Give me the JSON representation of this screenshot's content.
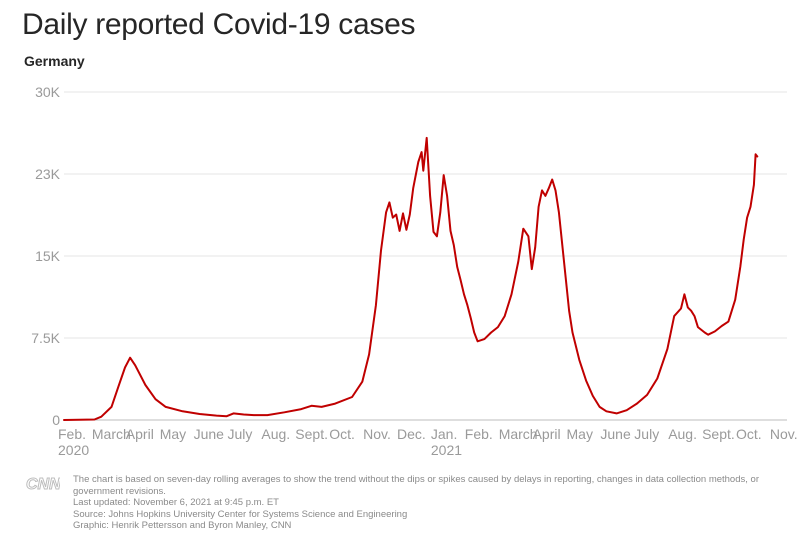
{
  "header": {
    "title": "Daily reported Covid-19 cases",
    "subtitle": "Germany"
  },
  "footer": {
    "logo": "CNN",
    "note": "The chart is based on seven-day rolling averages to show the trend without the dips or spikes caused by delays in reporting, changes in data collection methods, or government revisions.",
    "updated": "Last updated: November 6, 2021 at 9:45 p.m. ET",
    "source": "Source: Johns Hopkins University Center for Systems Science and Engineering",
    "graphic": "Graphic: Henrik Pettersson and Byron Manley, CNN"
  },
  "colors": {
    "line": "#c00000",
    "grid": "#e6e6e6",
    "axis": "#bdbdbd",
    "tick_text": "#9a9a9a"
  },
  "chart_data": {
    "type": "line",
    "title": "Daily reported Covid-19 cases",
    "subtitle": "Germany",
    "xlabel": "",
    "ylabel": "",
    "ylim": [
      0,
      30000
    ],
    "y_ticks": [
      {
        "value": 0,
        "label": "0"
      },
      {
        "value": 7500,
        "label": "7.5K"
      },
      {
        "value": 15000,
        "label": "15K"
      },
      {
        "value": 22500,
        "label": "23K"
      },
      {
        "value": 30000,
        "label": "30K"
      }
    ],
    "x_ticks": [
      {
        "month": 0,
        "label": "Feb."
      },
      {
        "month": 1,
        "label": "March"
      },
      {
        "month": 2,
        "label": "April"
      },
      {
        "month": 3,
        "label": "May"
      },
      {
        "month": 4,
        "label": "June"
      },
      {
        "month": 5,
        "label": "July"
      },
      {
        "month": 6,
        "label": "Aug."
      },
      {
        "month": 7,
        "label": "Sept."
      },
      {
        "month": 8,
        "label": "Oct."
      },
      {
        "month": 9,
        "label": "Nov."
      },
      {
        "month": 10,
        "label": "Dec."
      },
      {
        "month": 11,
        "label": "Jan."
      },
      {
        "month": 12,
        "label": "Feb."
      },
      {
        "month": 13,
        "label": "March"
      },
      {
        "month": 14,
        "label": "April"
      },
      {
        "month": 15,
        "label": "May"
      },
      {
        "month": 16,
        "label": "June"
      },
      {
        "month": 17,
        "label": "July"
      },
      {
        "month": 18,
        "label": "Aug."
      },
      {
        "month": 19,
        "label": "Sept."
      },
      {
        "month": 20,
        "label": "Oct."
      },
      {
        "month": 21,
        "label": "Nov."
      }
    ],
    "year_labels": [
      {
        "month": 0,
        "label": "2020"
      },
      {
        "month": 11,
        "label": "2021"
      }
    ],
    "grid": true,
    "series": [
      {
        "points": [
          [
            0.0,
            0
          ],
          [
            0.9,
            50
          ],
          [
            1.1,
            300
          ],
          [
            1.4,
            1200
          ],
          [
            1.6,
            3000
          ],
          [
            1.8,
            4800
          ],
          [
            1.95,
            5700
          ],
          [
            2.1,
            5000
          ],
          [
            2.4,
            3200
          ],
          [
            2.7,
            1900
          ],
          [
            3.0,
            1200
          ],
          [
            3.5,
            800
          ],
          [
            4.0,
            550
          ],
          [
            4.5,
            400
          ],
          [
            4.8,
            350
          ],
          [
            5.0,
            600
          ],
          [
            5.3,
            500
          ],
          [
            5.6,
            450
          ],
          [
            6.0,
            450
          ],
          [
            6.5,
            700
          ],
          [
            7.0,
            1000
          ],
          [
            7.3,
            1300
          ],
          [
            7.6,
            1200
          ],
          [
            8.0,
            1500
          ],
          [
            8.5,
            2100
          ],
          [
            8.8,
            3500
          ],
          [
            9.0,
            6000
          ],
          [
            9.2,
            10500
          ],
          [
            9.35,
            15500
          ],
          [
            9.5,
            19000
          ],
          [
            9.6,
            19900
          ],
          [
            9.7,
            18500
          ],
          [
            9.8,
            18800
          ],
          [
            9.9,
            17300
          ],
          [
            10.0,
            18900
          ],
          [
            10.1,
            17400
          ],
          [
            10.2,
            18800
          ],
          [
            10.3,
            21200
          ],
          [
            10.45,
            23600
          ],
          [
            10.55,
            24500
          ],
          [
            10.6,
            22800
          ],
          [
            10.7,
            25800
          ],
          [
            10.8,
            20500
          ],
          [
            10.9,
            17200
          ],
          [
            11.0,
            16800
          ],
          [
            11.1,
            19000
          ],
          [
            11.2,
            22400
          ],
          [
            11.3,
            20500
          ],
          [
            11.4,
            17300
          ],
          [
            11.5,
            16000
          ],
          [
            11.6,
            14000
          ],
          [
            11.7,
            12800
          ],
          [
            11.8,
            11500
          ],
          [
            11.9,
            10500
          ],
          [
            12.0,
            9300
          ],
          [
            12.1,
            8000
          ],
          [
            12.2,
            7200
          ],
          [
            12.4,
            7400
          ],
          [
            12.6,
            8000
          ],
          [
            12.8,
            8500
          ],
          [
            13.0,
            9500
          ],
          [
            13.2,
            11500
          ],
          [
            13.4,
            14500
          ],
          [
            13.55,
            17500
          ],
          [
            13.7,
            16800
          ],
          [
            13.8,
            13800
          ],
          [
            13.9,
            15800
          ],
          [
            14.0,
            19500
          ],
          [
            14.1,
            21000
          ],
          [
            14.2,
            20500
          ],
          [
            14.3,
            21200
          ],
          [
            14.4,
            22000
          ],
          [
            14.5,
            21000
          ],
          [
            14.6,
            19000
          ],
          [
            14.7,
            16000
          ],
          [
            14.8,
            13000
          ],
          [
            14.9,
            10000
          ],
          [
            15.0,
            8000
          ],
          [
            15.2,
            5500
          ],
          [
            15.4,
            3600
          ],
          [
            15.6,
            2200
          ],
          [
            15.8,
            1200
          ],
          [
            16.0,
            800
          ],
          [
            16.3,
            600
          ],
          [
            16.6,
            900
          ],
          [
            16.9,
            1500
          ],
          [
            17.2,
            2300
          ],
          [
            17.5,
            3800
          ],
          [
            17.8,
            6500
          ],
          [
            18.0,
            9500
          ],
          [
            18.2,
            10200
          ],
          [
            18.3,
            11500
          ],
          [
            18.4,
            10300
          ],
          [
            18.5,
            10000
          ],
          [
            18.6,
            9500
          ],
          [
            18.7,
            8500
          ],
          [
            18.9,
            8000
          ],
          [
            19.0,
            7800
          ],
          [
            19.2,
            8100
          ],
          [
            19.4,
            8600
          ],
          [
            19.6,
            9000
          ],
          [
            19.8,
            11000
          ],
          [
            19.95,
            14000
          ],
          [
            20.05,
            16500
          ],
          [
            20.15,
            18500
          ],
          [
            20.25,
            19500
          ],
          [
            20.35,
            21500
          ],
          [
            20.4,
            24300
          ],
          [
            20.45,
            24100
          ]
        ]
      }
    ]
  }
}
